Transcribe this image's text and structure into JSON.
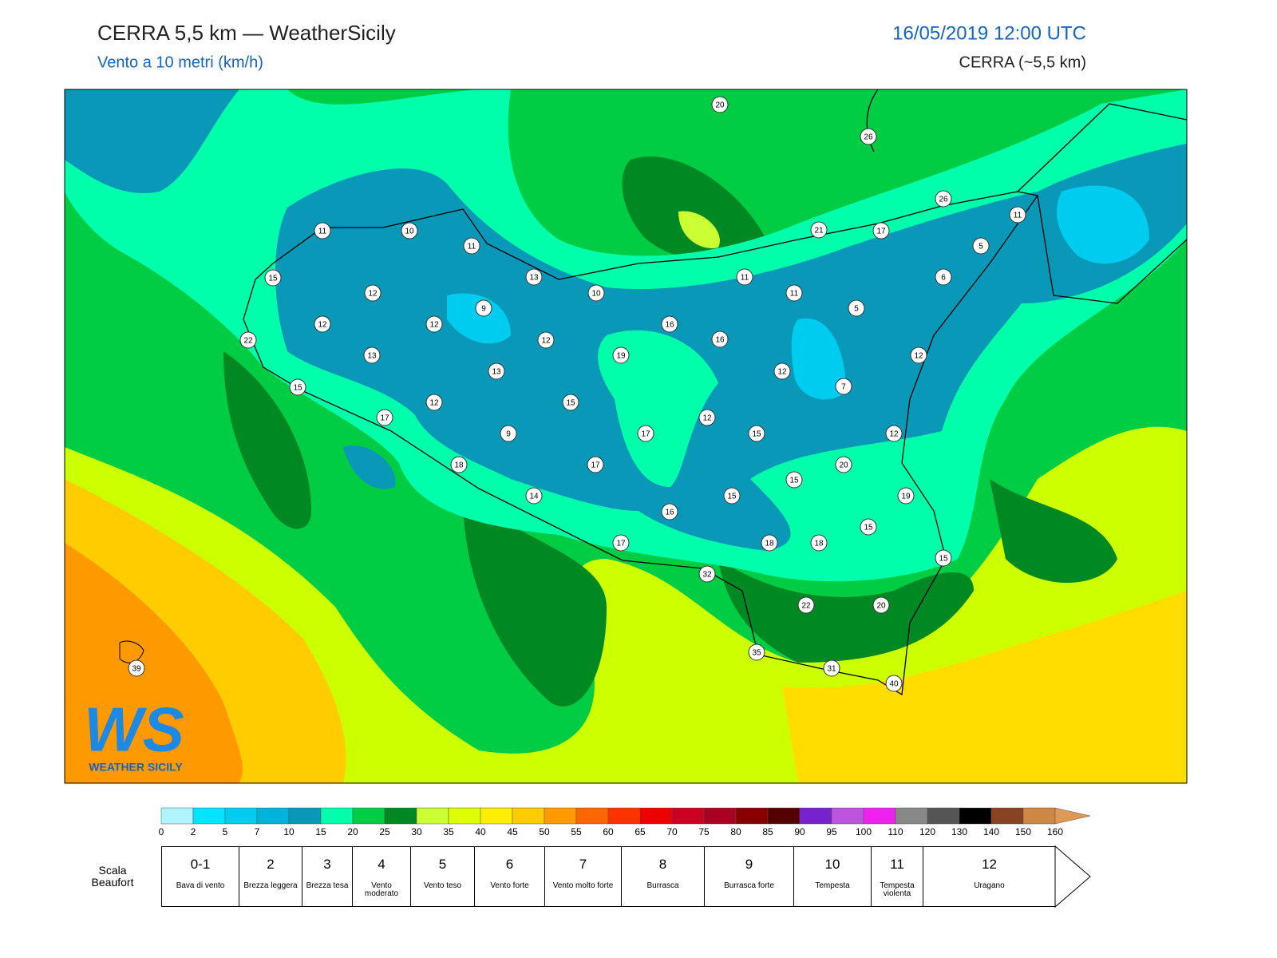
{
  "header": {
    "title": "CERRA 5,5 km — WeatherSicily",
    "subtitle": "Vento a 10 metri (km/h)",
    "date": "16/05/2019 12:00 UTC",
    "model": "CERRA (~5,5 km)"
  },
  "map": {
    "stations": [
      20,
      26,
      26,
      11,
      11,
      10,
      11,
      21,
      17,
      5,
      15,
      13,
      10,
      11,
      11,
      6,
      12,
      9,
      5,
      12,
      12,
      16,
      12,
      16,
      22,
      13,
      19,
      12,
      13,
      12,
      7,
      15,
      15,
      12,
      17,
      12,
      9,
      17,
      15,
      12,
      18,
      17,
      20,
      15,
      14,
      15,
      19,
      16,
      15,
      17,
      18,
      18,
      15,
      32,
      22,
      20,
      39,
      35,
      31,
      40
    ]
  },
  "logo": {
    "initials": "WS",
    "name": "WEATHER SICILY"
  },
  "colorbar": {
    "ticks": [
      0,
      2,
      5,
      7,
      10,
      15,
      20,
      25,
      30,
      35,
      40,
      45,
      50,
      55,
      60,
      65,
      70,
      75,
      80,
      85,
      90,
      95,
      100,
      110,
      120,
      130,
      140,
      150,
      160
    ],
    "colors": [
      "#b0f4ff",
      "#00e5ff",
      "#00ccf0",
      "#00b3da",
      "#0a98b8",
      "#00ffaa",
      "#00cc44",
      "#008822",
      "#ccff33",
      "#ddff00",
      "#ffee00",
      "#ffcc00",
      "#ff9900",
      "#ff6600",
      "#ff3300",
      "#ee0000",
      "#cc0022",
      "#aa0022",
      "#880000",
      "#550000",
      "#7722cc",
      "#bb55dd",
      "#ee22ee",
      "#888888",
      "#555555",
      "#000000",
      "#884422",
      "#cc8844",
      "#dd9955"
    ]
  },
  "beaufort": {
    "label": "Scala Beaufort",
    "levels": [
      {
        "force": "0-1",
        "name": "Bava di vento"
      },
      {
        "force": "2",
        "name": "Brezza leggera"
      },
      {
        "force": "3",
        "name": "Brezza tesa"
      },
      {
        "force": "4",
        "name": "Vento moderato"
      },
      {
        "force": "5",
        "name": "Vento teso"
      },
      {
        "force": "6",
        "name": "Vento forte"
      },
      {
        "force": "7",
        "name": "Vento molto forte"
      },
      {
        "force": "8",
        "name": "Burrasca"
      },
      {
        "force": "9",
        "name": "Burrasca forte"
      },
      {
        "force": "10",
        "name": "Tempesta"
      },
      {
        "force": "11",
        "name": "Tempesta violenta"
      },
      {
        "force": "12",
        "name": "Uragano"
      }
    ]
  }
}
